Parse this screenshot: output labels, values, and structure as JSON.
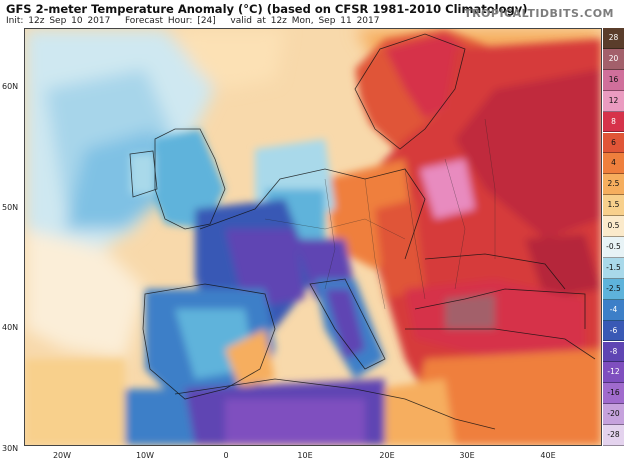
{
  "header": {
    "title": "GFS 2-meter Temperature Anomaly (°C) (based on CFSR 1981-2010 Climatology)",
    "run": "Init: 12z Sep 10 2017",
    "forecast": "Forecast Hour: [24]",
    "valid": "valid at 12z Mon, Sep 11 2017",
    "brand": "TROPICALTIDBITS.COM"
  },
  "axes": {
    "lat_labels": [
      "60N",
      "50N",
      "40N",
      "30N"
    ],
    "lon_labels": [
      "20W",
      "10W",
      "0",
      "10E",
      "20E",
      "30E",
      "40E"
    ]
  },
  "colorbar": {
    "labels": [
      "28",
      "20",
      "16",
      "12",
      "8",
      "6",
      "4",
      "2.5",
      "1.5",
      "0.5",
      "-0.5",
      "-1.5",
      "-2.5",
      "-4",
      "-6",
      "-8",
      "-12",
      "-16",
      "-20",
      "-28"
    ],
    "colors": [
      "#5a3d2b",
      "#a3606b",
      "#d06f9b",
      "#ea9bc0",
      "#d6324a",
      "#e05537",
      "#ef7f3d",
      "#f6ae5e",
      "#f8d08c",
      "#fbeacb",
      "#e8f3f6",
      "#a9d9ea",
      "#5eb3db",
      "#3d7fc8",
      "#3959b5",
      "#5f45b3",
      "#7f4fbf",
      "#a06bcd",
      "#c6a2dd",
      "#e4d3ee"
    ]
  },
  "regions": {
    "warm_anomaly": "Eastern Europe, Scandinavia and Turkey",
    "cold_anomaly": "France, Iberia, Italy and North Africa"
  }
}
